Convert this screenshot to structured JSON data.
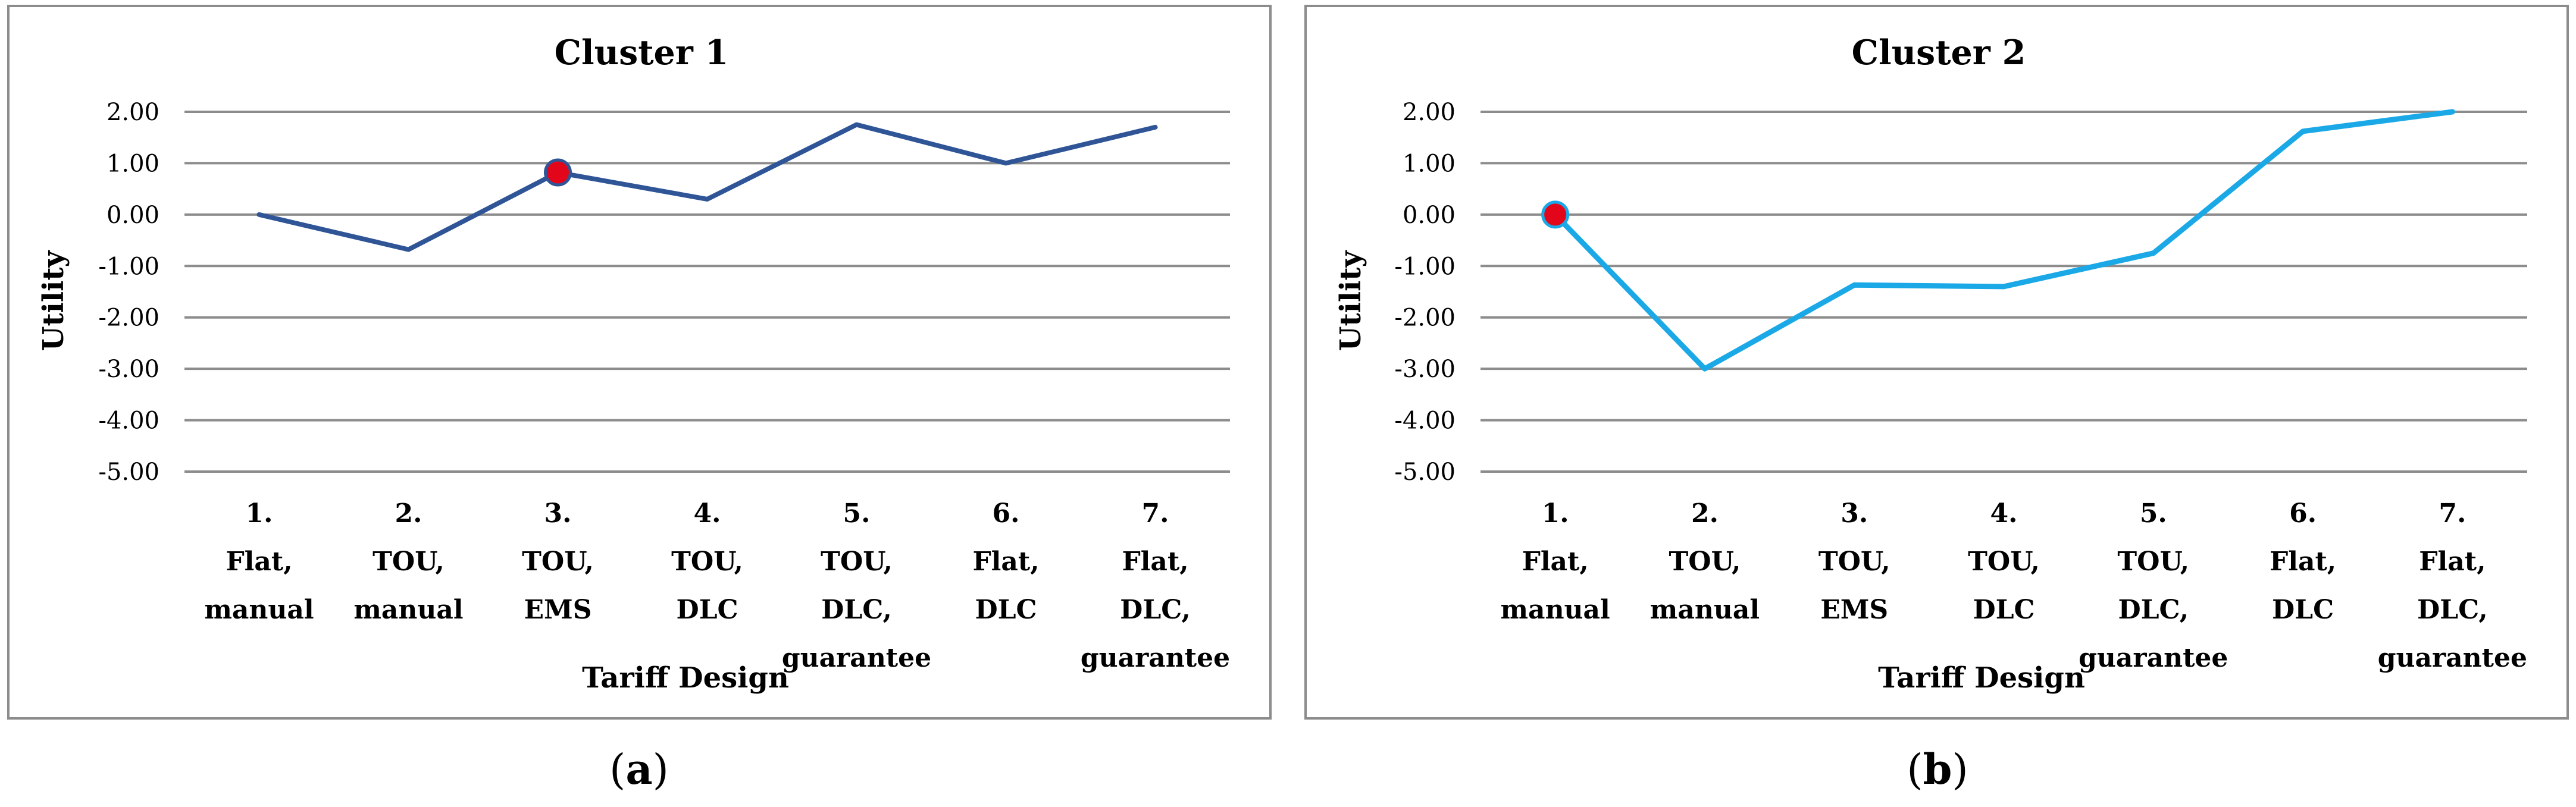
{
  "chart_data": [
    {
      "type": "line",
      "title": "Cluster 1",
      "xlabel": "Tariff Design",
      "ylabel": "Utility",
      "ylim": [
        -5.0,
        2.0
      ],
      "yticks": [
        "2.00",
        "1.00",
        "0.00",
        "-1.00",
        "-2.00",
        "-3.00",
        "-4.00",
        "-5.00"
      ],
      "categories": [
        [
          "1.",
          "Flat,",
          "manual"
        ],
        [
          "2.",
          "TOU,",
          "manual"
        ],
        [
          "3.",
          "TOU,",
          "EMS"
        ],
        [
          "4.",
          "TOU,",
          "DLC"
        ],
        [
          "5.",
          "TOU,",
          "DLC,",
          "guarantee"
        ],
        [
          "6.",
          "Flat,",
          "DLC"
        ],
        [
          "7.",
          "Flat,",
          "DLC,",
          "guarantee"
        ]
      ],
      "values": [
        0.0,
        -0.68,
        0.82,
        0.3,
        1.75,
        1.0,
        1.7
      ],
      "line_color": "#2f5597",
      "highlight_index": 2,
      "highlight_color": "#e3061b",
      "caption_letter": "a"
    },
    {
      "type": "line",
      "title": "Cluster 2",
      "xlabel": "Tariff Design",
      "ylabel": "Utility",
      "ylim": [
        -5.0,
        2.0
      ],
      "yticks": [
        "2.00",
        "1.00",
        "0.00",
        "-1.00",
        "-2.00",
        "-3.00",
        "-4.00",
        "-5.00"
      ],
      "categories": [
        [
          "1.",
          "Flat,",
          "manual"
        ],
        [
          "2.",
          "TOU,",
          "manual"
        ],
        [
          "3.",
          "TOU,",
          "EMS"
        ],
        [
          "4.",
          "TOU,",
          "DLC"
        ],
        [
          "5.",
          "TOU,",
          "DLC,",
          "guarantee"
        ],
        [
          "6.",
          "Flat,",
          "DLC"
        ],
        [
          "7.",
          "Flat,",
          "DLC,",
          "guarantee"
        ]
      ],
      "values": [
        0.0,
        -3.0,
        -1.37,
        -1.4,
        -0.75,
        1.62,
        2.0
      ],
      "line_color": "#1aa9e6",
      "highlight_index": 0,
      "highlight_color": "#e3061b",
      "caption_letter": "b"
    }
  ]
}
